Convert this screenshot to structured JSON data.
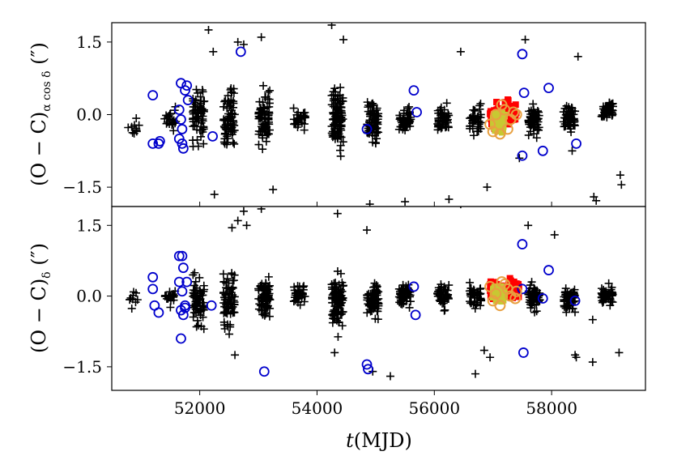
{
  "chart_data": {
    "type": "scatter",
    "xlabel_var": "t",
    "xlabel_unit": "(MJD)",
    "x_ticks": [
      "52000",
      "54000",
      "56000",
      "58000"
    ],
    "xlim": [
      50500,
      59600
    ],
    "shared_x": true,
    "panels": [
      {
        "ylabel_main": "(O − C)",
        "ylabel_sub": "α cos δ",
        "ylabel_unit": " (″)",
        "ylim": [
          -1.9,
          1.9
        ],
        "y_ticks": [
          "1.5",
          "0.0",
          "−1.5"
        ],
        "y_tick_values": [
          1.5,
          0.0,
          -1.5
        ],
        "series": [
          {
            "marker": "plus",
            "color": "#000000",
            "clusters": [
              {
                "x": 50880,
                "mean": -0.3,
                "spread": 0.45,
                "n": 10
              },
              {
                "x": 51500,
                "mean": -0.1,
                "spread": 0.35,
                "n": 20
              },
              {
                "x": 51980,
                "mean": -0.05,
                "spread": 0.8,
                "n": 70
              },
              {
                "x": 52500,
                "mean": -0.05,
                "spread": 1.0,
                "n": 70
              },
              {
                "x": 53100,
                "mean": -0.1,
                "spread": 0.9,
                "n": 80
              },
              {
                "x": 53700,
                "mean": -0.1,
                "spread": 0.35,
                "n": 30
              },
              {
                "x": 54350,
                "mean": -0.1,
                "spread": 1.1,
                "n": 100
              },
              {
                "x": 54950,
                "mean": -0.1,
                "spread": 0.7,
                "n": 70
              },
              {
                "x": 55500,
                "mean": -0.15,
                "spread": 0.5,
                "n": 50
              },
              {
                "x": 56150,
                "mean": -0.1,
                "spread": 0.5,
                "n": 50
              },
              {
                "x": 56700,
                "mean": -0.1,
                "spread": 0.45,
                "n": 40
              },
              {
                "x": 57700,
                "mean": -0.1,
                "spread": 0.5,
                "n": 60
              },
              {
                "x": 58300,
                "mean": -0.1,
                "spread": 0.45,
                "n": 60
              },
              {
                "x": 58950,
                "mean": 0.1,
                "spread": 0.35,
                "n": 50
              }
            ],
            "points": [
              [
                52150,
                1.75
              ],
              [
                52230,
                1.3
              ],
              [
                52650,
                1.5
              ],
              [
                52750,
                1.45
              ],
              [
                53050,
                1.6
              ],
              [
                54250,
                1.85
              ],
              [
                54450,
                1.55
              ],
              [
                56450,
                1.3
              ],
              [
                57550,
                1.55
              ],
              [
                58450,
                1.2
              ],
              [
                52250,
                -1.65
              ],
              [
                53250,
                -1.55
              ],
              [
                54350,
                -2.0
              ],
              [
                54900,
                -1.85
              ],
              [
                55500,
                -1.8
              ],
              [
                56250,
                -1.75
              ],
              [
                58720,
                -1.7
              ],
              [
                58760,
                -1.78
              ],
              [
                59190,
                -1.45
              ],
              [
                59170,
                -1.25
              ],
              [
                56900,
                -1.5
              ],
              [
                57450,
                -0.9
              ],
              [
                58350,
                -0.75
              ]
            ]
          },
          {
            "marker": "dense",
            "color": "#ff0000",
            "clusters": [
              {
                "x": 57050,
                "mean": -0.05,
                "spread": 0.4,
                "n": 90
              },
              {
                "x": 57300,
                "mean": 0.0,
                "spread": 0.35,
                "n": 60
              }
            ]
          },
          {
            "marker": "dense",
            "color": "#c8c832",
            "clusters": [
              {
                "x": 57100,
                "mean": -0.15,
                "spread": 0.35,
                "n": 90
              }
            ]
          },
          {
            "marker": "circle",
            "color": "#0000cc",
            "points": [
              [
                51200,
                0.4
              ],
              [
                51200,
                -0.6
              ],
              [
                51300,
                -0.6
              ],
              [
                51320,
                -0.55
              ],
              [
                51650,
                0.1
              ],
              [
                51680,
                -0.1
              ],
              [
                51700,
                -0.3
              ],
              [
                51650,
                -0.5
              ],
              [
                51700,
                -0.6
              ],
              [
                51720,
                -0.7
              ],
              [
                51750,
                0.5
              ],
              [
                51800,
                0.3
              ],
              [
                51680,
                0.65
              ],
              [
                51780,
                0.6
              ],
              [
                52220,
                -0.45
              ],
              [
                52700,
                1.3
              ],
              [
                54850,
                -0.3
              ],
              [
                55650,
                0.5
              ],
              [
                55700,
                0.05
              ],
              [
                57500,
                1.25
              ],
              [
                57530,
                0.45
              ],
              [
                57500,
                -0.85
              ],
              [
                57950,
                0.55
              ],
              [
                57850,
                -0.75
              ],
              [
                58420,
                -0.6
              ]
            ]
          },
          {
            "marker": "ring",
            "color": "#e8a040",
            "points": [
              [
                56950,
                -0.2
              ],
              [
                57050,
                0.0
              ],
              [
                57120,
                -0.4
              ],
              [
                57200,
                0.1
              ],
              [
                57300,
                -0.1
              ],
              [
                57400,
                0.0
              ],
              [
                57000,
                -0.35
              ],
              [
                57250,
                -0.3
              ],
              [
                57150,
                0.2
              ],
              [
                57350,
                0.05
              ]
            ]
          }
        ]
      },
      {
        "ylabel_main": "(O − C)",
        "ylabel_sub": "δ",
        "ylabel_unit": " (″)",
        "ylim": [
          -2.0,
          1.9
        ],
        "y_ticks": [
          "1.5",
          "0.0",
          "−1.5"
        ],
        "y_tick_values": [
          1.5,
          0.0,
          -1.5
        ],
        "series": [
          {
            "marker": "plus",
            "color": "#000000",
            "clusters": [
              {
                "x": 50880,
                "mean": -0.1,
                "spread": 0.4,
                "n": 10
              },
              {
                "x": 51500,
                "mean": 0.0,
                "spread": 0.35,
                "n": 20
              },
              {
                "x": 51980,
                "mean": -0.2,
                "spread": 0.9,
                "n": 70
              },
              {
                "x": 52500,
                "mean": -0.1,
                "spread": 1.0,
                "n": 70
              },
              {
                "x": 53100,
                "mean": 0.0,
                "spread": 0.8,
                "n": 80
              },
              {
                "x": 53700,
                "mean": 0.05,
                "spread": 0.35,
                "n": 30
              },
              {
                "x": 54350,
                "mean": -0.1,
                "spread": 1.0,
                "n": 100
              },
              {
                "x": 54950,
                "mean": -0.05,
                "spread": 0.7,
                "n": 70
              },
              {
                "x": 55500,
                "mean": 0.0,
                "spread": 0.4,
                "n": 50
              },
              {
                "x": 56150,
                "mean": 0.0,
                "spread": 0.4,
                "n": 50
              },
              {
                "x": 56700,
                "mean": 0.0,
                "spread": 0.45,
                "n": 40
              },
              {
                "x": 57700,
                "mean": 0.0,
                "spread": 0.5,
                "n": 60
              },
              {
                "x": 58300,
                "mean": -0.05,
                "spread": 0.4,
                "n": 60
              },
              {
                "x": 58950,
                "mean": 0.0,
                "spread": 0.35,
                "n": 50
              }
            ],
            "points": [
              [
                52550,
                1.45
              ],
              [
                52650,
                1.6
              ],
              [
                52750,
                1.8
              ],
              [
                52800,
                1.5
              ],
              [
                53050,
                1.85
              ],
              [
                54350,
                1.75
              ],
              [
                54850,
                1.4
              ],
              [
                56450,
                1.95
              ],
              [
                57600,
                1.5
              ],
              [
                58050,
                1.3
              ],
              [
                52600,
                -1.25
              ],
              [
                54300,
                -1.2
              ],
              [
                54950,
                -1.6
              ],
              [
                55250,
                -1.7
              ],
              [
                56700,
                -1.65
              ],
              [
                56950,
                -1.3
              ],
              [
                58400,
                -1.25
              ],
              [
                58420,
                -1.3
              ],
              [
                59150,
                -1.2
              ],
              [
                58700,
                -1.4
              ],
              [
                56850,
                -1.15
              ],
              [
                58700,
                -0.5
              ]
            ]
          },
          {
            "marker": "dense",
            "color": "#ff0000",
            "clusters": [
              {
                "x": 57050,
                "mean": 0.1,
                "spread": 0.3,
                "n": 80
              },
              {
                "x": 57350,
                "mean": 0.15,
                "spread": 0.3,
                "n": 60
              }
            ]
          },
          {
            "marker": "dense",
            "color": "#c8c832",
            "clusters": [
              {
                "x": 57100,
                "mean": 0.05,
                "spread": 0.3,
                "n": 90
              }
            ]
          },
          {
            "marker": "circle",
            "color": "#0000cc",
            "points": [
              [
                51200,
                0.4
              ],
              [
                51200,
                0.15
              ],
              [
                51230,
                -0.2
              ],
              [
                51300,
                -0.35
              ],
              [
                51650,
                0.85
              ],
              [
                51700,
                0.85
              ],
              [
                51720,
                0.6
              ],
              [
                51650,
                0.3
              ],
              [
                51700,
                0.1
              ],
              [
                51680,
                -0.3
              ],
              [
                51720,
                -0.4
              ],
              [
                51750,
                -0.2
              ],
              [
                51780,
                0.3
              ],
              [
                51680,
                -0.9
              ],
              [
                51750,
                -0.25
              ],
              [
                52200,
                -0.2
              ],
              [
                53100,
                -1.6
              ],
              [
                54850,
                -1.45
              ],
              [
                54870,
                -1.55
              ],
              [
                55650,
                0.2
              ],
              [
                55680,
                -0.4
              ],
              [
                57500,
                1.1
              ],
              [
                57520,
                -1.2
              ],
              [
                57500,
                0.15
              ],
              [
                57950,
                0.55
              ],
              [
                57850,
                -0.05
              ],
              [
                58400,
                -0.1
              ]
            ]
          },
          {
            "marker": "ring",
            "color": "#e8a040",
            "points": [
              [
                56950,
                0.2
              ],
              [
                57050,
                0.05
              ],
              [
                57120,
                -0.2
              ],
              [
                57200,
                0.25
              ],
              [
                57300,
                0.0
              ],
              [
                57400,
                0.1
              ],
              [
                57000,
                -0.1
              ],
              [
                57250,
                0.15
              ],
              [
                57150,
                0.3
              ],
              [
                57380,
                -0.05
              ]
            ]
          }
        ]
      }
    ]
  }
}
